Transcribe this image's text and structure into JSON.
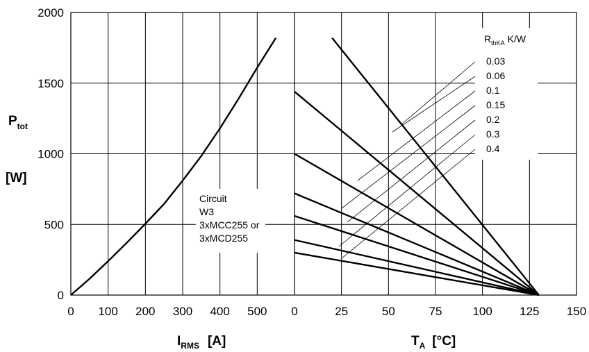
{
  "chart_data": {
    "type": "line",
    "y_axis": {
      "label_main": "P",
      "label_sub": "tot",
      "unit": "[W]",
      "ylim": [
        0,
        2000
      ],
      "ticks": [
        "0",
        "500",
        "1000",
        "1500",
        "2000"
      ],
      "grid": true
    },
    "left_panel": {
      "x_axis": {
        "label_main": "I",
        "label_sub": "RMS",
        "unit": "[A]",
        "xlim": [
          0,
          600
        ],
        "ticks": [
          "0",
          "100",
          "200",
          "300",
          "400",
          "500"
        ]
      },
      "series": [
        {
          "x": [
            0,
            50,
            100,
            150,
            200,
            250,
            300,
            350,
            400,
            450,
            500,
            550
          ],
          "y": [
            0,
            115,
            240,
            370,
            505,
            645,
            810,
            985,
            1180,
            1390,
            1610,
            1820
          ]
        }
      ],
      "annotation": [
        "Circuit",
        "W3",
        "3xMCC255 or",
        "3xMCD255"
      ]
    },
    "right_panel": {
      "x_axis": {
        "label_main": "T",
        "label_sub": "A",
        "unit": "[°C]",
        "xlim": [
          0,
          150
        ],
        "ticks": [
          "0",
          "25",
          "50",
          "75",
          "100",
          "125",
          "150"
        ]
      },
      "legend_title_main": "R",
      "legend_title_sub": "thKA",
      "legend_title_unit": "K/W",
      "series": [
        {
          "name": "0.03",
          "x": [
            20,
            130
          ],
          "y": [
            1820,
            0
          ]
        },
        {
          "name": "0.06",
          "x": [
            0,
            130
          ],
          "y": [
            1440,
            0
          ]
        },
        {
          "name": "0.1",
          "x": [
            0,
            130
          ],
          "y": [
            1000,
            0
          ]
        },
        {
          "name": "0.15",
          "x": [
            0,
            130
          ],
          "y": [
            720,
            0
          ]
        },
        {
          "name": "0.2",
          "x": [
            0,
            130
          ],
          "y": [
            560,
            0
          ]
        },
        {
          "name": "0.3",
          "x": [
            0,
            130
          ],
          "y": [
            390,
            0
          ]
        },
        {
          "name": "0.4",
          "x": [
            0,
            130
          ],
          "y": [
            300,
            0
          ]
        }
      ]
    }
  }
}
